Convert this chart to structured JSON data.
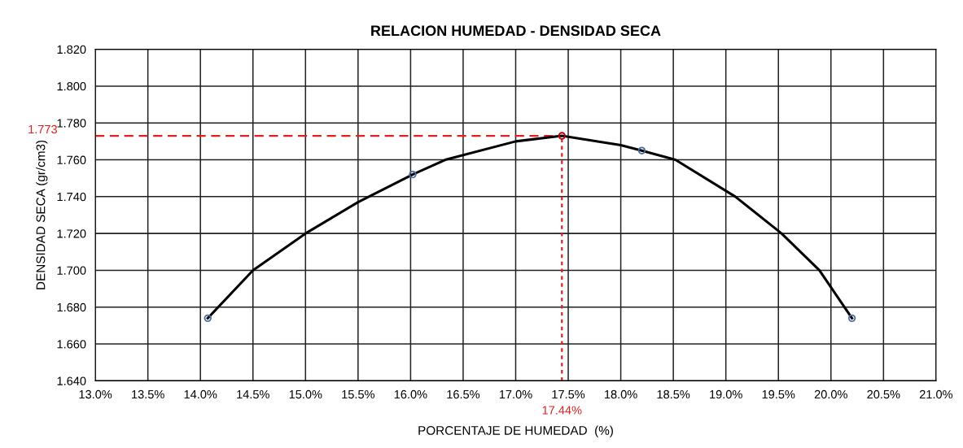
{
  "chart_data": {
    "type": "scatter",
    "title": "RELACION HUMEDAD - DENSIDAD SECA",
    "xlabel": "PORCENTAJE DE HUMEDAD  (%)",
    "ylabel": "DENSIDAD SECA (gr/cm3)",
    "series": [
      {
        "type": "line",
        "color": "#000000",
        "marker": "none",
        "x": [
          14.07,
          14.5,
          15.0,
          15.5,
          16.02,
          16.33,
          17.0,
          17.44,
          18.0,
          18.2,
          18.52,
          19.09,
          19.53,
          19.89,
          20.2
        ],
        "values": [
          1.674,
          1.7,
          1.72,
          1.737,
          1.752,
          1.76,
          1.77,
          1.773,
          1.768,
          1.765,
          1.76,
          1.74,
          1.72,
          1.7,
          1.674
        ]
      },
      {
        "color": "#4a6fa5",
        "marker": "circle",
        "x": [
          14.07,
          16.02,
          18.2,
          20.2
        ],
        "values": [
          1.674,
          1.752,
          1.765,
          1.674
        ]
      },
      {
        "type": "scatter",
        "color": "#c00000",
        "marker": "circle",
        "x": [
          17.44
        ],
        "values": [
          1.773
        ]
      }
    ],
    "xlim": [
      13.0,
      21.0
    ],
    "xticks": [
      {
        "value": 13.0,
        "label": "13.0%"
      },
      {
        "value": 13.5,
        "label": "13.5%"
      },
      {
        "value": 14.0,
        "label": "14.0%"
      },
      {
        "value": 14.5,
        "label": "14.5%"
      },
      {
        "value": 15.0,
        "label": "15.0%"
      },
      {
        "value": 15.5,
        "label": "15.5%"
      },
      {
        "value": 16.0,
        "label": "16.0%"
      },
      {
        "value": 16.5,
        "label": "16.5%"
      },
      {
        "value": 17.0,
        "label": "17.0%"
      },
      {
        "value": 17.5,
        "label": "17.5%"
      },
      {
        "value": 18.0,
        "label": "18.0%"
      },
      {
        "value": 18.5,
        "label": "18.5%"
      },
      {
        "value": 19.0,
        "label": "19.0%"
      },
      {
        "value": 19.5,
        "label": "19.5%"
      },
      {
        "value": 20.0,
        "label": "20.0%"
      },
      {
        "value": 20.5,
        "label": "20.5%"
      },
      {
        "value": 21.0,
        "label": "21.0%"
      }
    ],
    "ylim": [
      1.64,
      1.82
    ],
    "yticks": [
      {
        "value": 1.64,
        "label": "1.640"
      },
      {
        "value": 1.66,
        "label": "1.660"
      },
      {
        "value": 1.68,
        "label": "1.680"
      },
      {
        "value": 1.7,
        "label": "1.700"
      },
      {
        "value": 1.72,
        "label": "1.720"
      },
      {
        "value": 1.74,
        "label": "1.740"
      },
      {
        "value": 1.76,
        "label": "1.760"
      },
      {
        "value": 1.78,
        "label": "1.780"
      },
      {
        "value": 1.8,
        "label": "1.800"
      },
      {
        "value": 1.82,
        "label": "1.820"
      }
    ],
    "ref_lines": [
      {
        "axis": "y",
        "value": 1.773,
        "label": "1.773",
        "color": "#e02020",
        "line_style": "dashed"
      },
      {
        "axis": "x",
        "value": 17.44,
        "label": "17.44%",
        "color": "#e02020",
        "line_style": "dotted"
      }
    ],
    "grid": true,
    "legend": false
  }
}
